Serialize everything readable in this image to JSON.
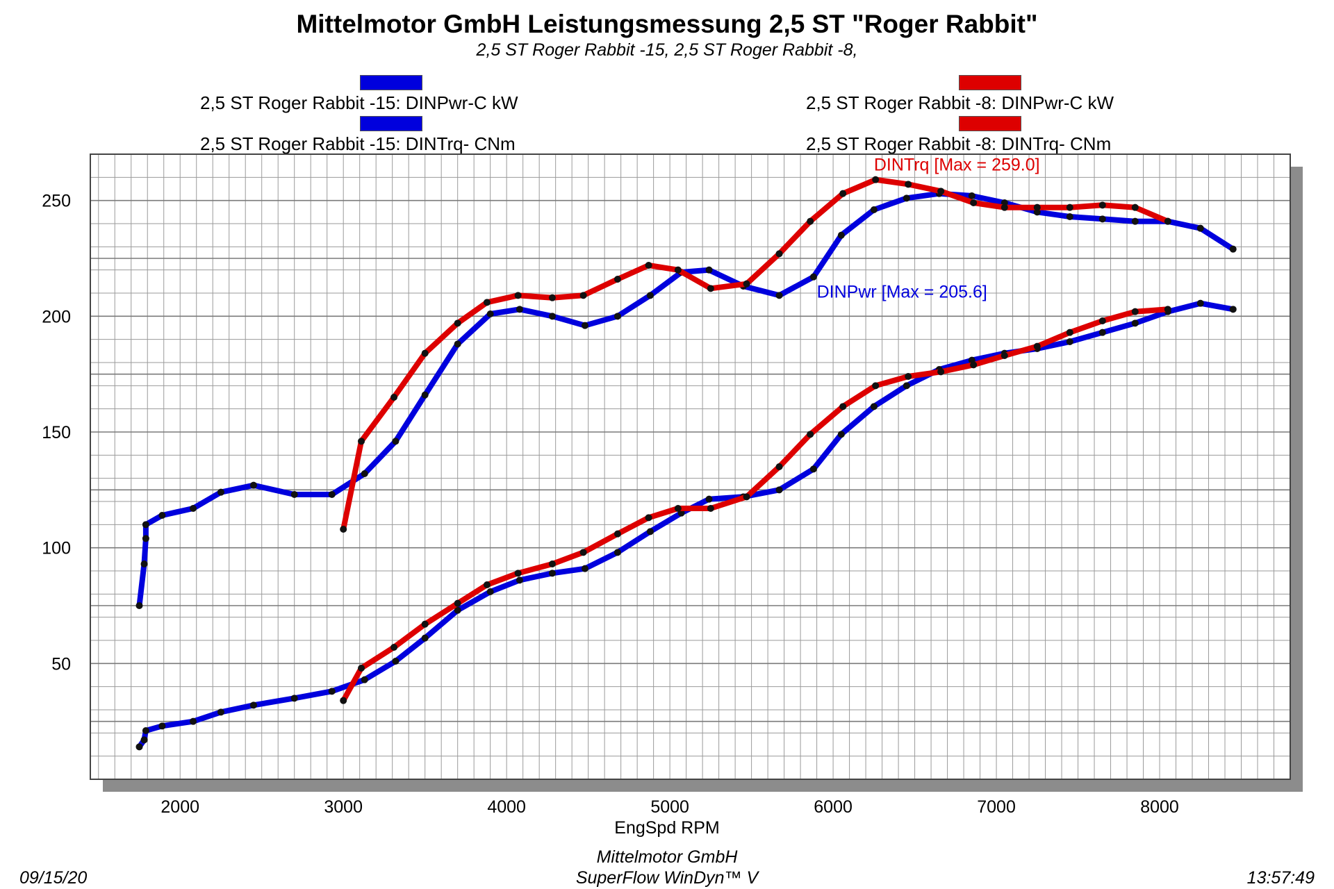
{
  "header": {
    "title": "Mittelmotor GmbH Leistungsmessung 2,5 ST \"Roger Rabbit\"",
    "subtitle": "2,5 ST Roger Rabbit -15, 2,5 ST Roger Rabbit -8,"
  },
  "legend": [
    {
      "label": "2,5 ST Roger Rabbit -15: DINPwr-C kW",
      "color": "#0000dd"
    },
    {
      "label": "2,5 ST Roger Rabbit -15: DINTrq- CNm",
      "color": "#0000dd"
    },
    {
      "label": "2,5 ST Roger Rabbit -8: DINPwr-C kW",
      "color": "#dd0000"
    },
    {
      "label": "2,5 ST Roger Rabbit -8: DINTrq- CNm",
      "color": "#dd0000"
    }
  ],
  "chart_data": {
    "type": "line",
    "xlabel": "EngSpd  RPM",
    "xlim": [
      1450,
      8800
    ],
    "ylim": [
      0,
      270
    ],
    "x_ticks": [
      2000,
      3000,
      4000,
      5000,
      6000,
      7000,
      8000
    ],
    "y_ticks": [
      50,
      100,
      150,
      200,
      250
    ],
    "grid": true,
    "legend_position": "top",
    "annotations": [
      {
        "text": "DINTrq [Max = 259.0]",
        "x": 6250,
        "y": 263,
        "color": "#dd0000"
      },
      {
        "text": "DINPwr [Max = 205.6]",
        "x": 5900,
        "y": 208,
        "color": "#0000dd"
      }
    ],
    "series": [
      {
        "name": "2,5 ST Roger Rabbit -15: DINTrq- CNm",
        "color": "#0000dd",
        "x": [
          1750,
          1780,
          1790,
          1790,
          1890,
          2080,
          2250,
          2450,
          2700,
          2930,
          3130,
          3320,
          3500,
          3700,
          3900,
          4080,
          4280,
          4480,
          4680,
          4880,
          5070,
          5240,
          5450,
          5670,
          5880,
          6050,
          6250,
          6450,
          6650,
          6850,
          7050,
          7250,
          7450,
          7650,
          7850,
          8050,
          8250,
          8450
        ],
        "y": [
          75,
          93,
          104,
          110,
          114,
          117,
          124,
          127,
          123,
          123,
          132,
          146,
          166,
          188,
          201,
          203,
          200,
          196,
          200,
          209,
          219,
          220,
          213,
          209,
          217,
          235,
          246,
          251,
          253,
          252,
          249,
          245,
          243,
          242,
          241,
          241,
          238,
          229
        ]
      },
      {
        "name": "2,5 ST Roger Rabbit -8: DINTrq- CNm",
        "color": "#dd0000",
        "x": [
          3000,
          3110,
          3310,
          3500,
          3700,
          3880,
          4070,
          4280,
          4470,
          4680,
          4870,
          5050,
          5250,
          5470,
          5670,
          5860,
          6060,
          6260,
          6460,
          6660,
          6860,
          7050,
          7250,
          7450,
          7650,
          7850,
          8050
        ],
        "y": [
          108,
          146,
          165,
          184,
          197,
          206,
          209,
          208,
          209,
          216,
          222,
          220,
          212,
          214,
          227,
          241,
          253,
          259,
          257,
          254,
          249,
          247,
          247,
          247,
          248,
          247,
          241
        ]
      },
      {
        "name": "2,5 ST Roger Rabbit -15: DINPwr-C kW",
        "color": "#0000dd",
        "x": [
          1750,
          1780,
          1790,
          1890,
          2080,
          2250,
          2450,
          2700,
          2930,
          3130,
          3320,
          3500,
          3700,
          3900,
          4080,
          4280,
          4480,
          4680,
          4880,
          5070,
          5240,
          5450,
          5670,
          5880,
          6050,
          6250,
          6450,
          6650,
          6850,
          7050,
          7250,
          7450,
          7650,
          7850,
          8050,
          8250,
          8450
        ],
        "y": [
          14,
          17,
          21,
          23,
          25,
          29,
          32,
          35,
          38,
          43,
          51,
          61,
          73,
          81,
          86,
          89,
          91,
          98,
          107,
          115,
          121,
          122,
          125,
          134,
          149,
          161,
          170,
          177,
          181,
          184,
          186,
          189,
          193,
          197,
          202,
          205.6,
          203
        ]
      },
      {
        "name": "2,5 ST Roger Rabbit -8: DINPwr-C kW",
        "color": "#dd0000",
        "x": [
          3000,
          3110,
          3310,
          3500,
          3700,
          3880,
          4070,
          4280,
          4470,
          4680,
          4870,
          5050,
          5250,
          5470,
          5670,
          5860,
          6060,
          6260,
          6460,
          6660,
          6860,
          7050,
          7250,
          7450,
          7650,
          7850,
          8050
        ],
        "y": [
          34,
          48,
          57,
          67,
          76,
          84,
          89,
          93,
          98,
          106,
          113,
          117,
          117,
          122,
          135,
          149,
          161,
          170,
          174,
          176,
          179,
          183,
          187,
          193,
          198,
          202,
          203
        ]
      }
    ]
  },
  "footer": {
    "date": "09/15/20",
    "company": "Mittelmotor GmbH",
    "software": "SuperFlow WinDyn™ V",
    "time": "13:57:49"
  }
}
